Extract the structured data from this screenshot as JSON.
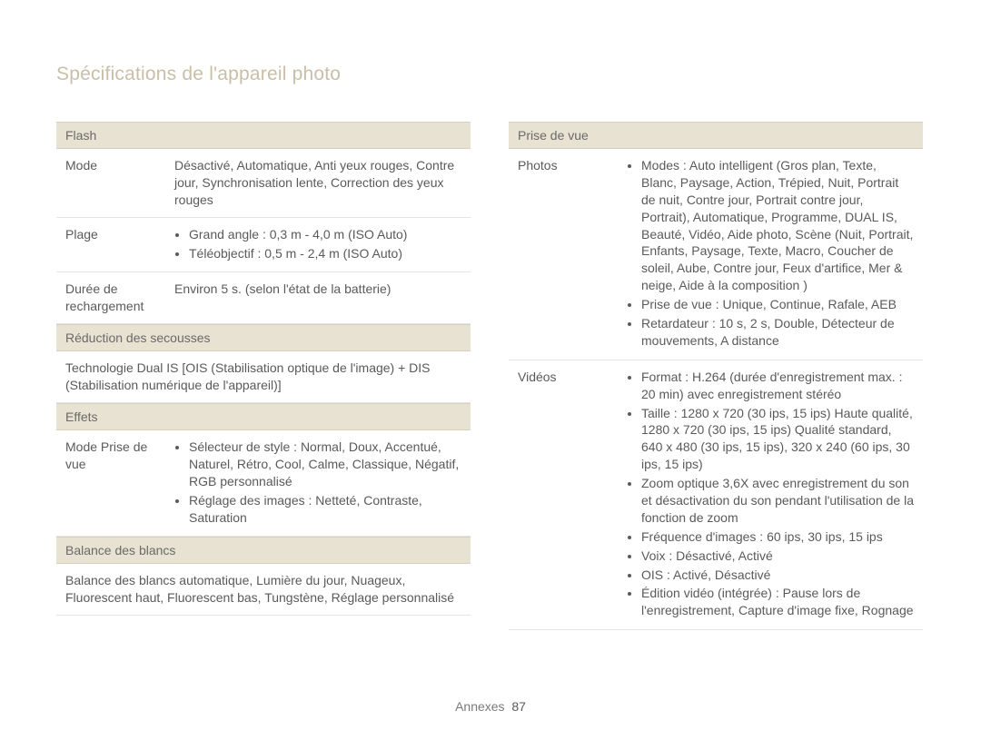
{
  "page_title": "Spécifications de l'appareil photo",
  "footer": {
    "label": "Annexes",
    "page_number": "87"
  },
  "colors": {
    "section_header_bg": "#e7e2d1",
    "title_color": "#c9bfa8",
    "border_color": "#e4e4e4",
    "text_color": "#5a5a5a"
  },
  "left": {
    "flash": {
      "header": "Flash",
      "mode": {
        "label": "Mode",
        "value": "Désactivé, Automatique, Anti yeux rouges, Contre jour, Synchronisation lente, Correction des yeux rouges"
      },
      "plage": {
        "label": "Plage",
        "bullets": [
          "Grand angle : 0,3 m - 4,0 m (ISO Auto)",
          "Téléobjectif : 0,5 m - 2,4 m (ISO Auto)"
        ]
      },
      "recharge": {
        "label": "Durée de rechargement",
        "value": "Environ 5 s. (selon l'état de la batterie)"
      }
    },
    "reduction": {
      "header": "Réduction des secousses",
      "text": "Technologie Dual IS [OIS (Stabilisation optique de l'image) + DIS (Stabilisation numérique de l'appareil)]"
    },
    "effets": {
      "header": "Effets",
      "mode_prise": {
        "label": "Mode Prise de vue",
        "bullets": [
          "Sélecteur de style : Normal, Doux, Accentué, Naturel, Rétro, Cool, Calme, Classique, Négatif, RGB personnalisé",
          "Réglage des images : Netteté, Contraste, Saturation"
        ]
      }
    },
    "balance": {
      "header": "Balance des blancs",
      "text": "Balance des blancs automatique, Lumière du jour, Nuageux, Fluorescent haut, Fluorescent bas, Tungstène, Réglage personnalisé"
    }
  },
  "right": {
    "prise": {
      "header": "Prise de vue",
      "photos": {
        "label": "Photos",
        "bullets": [
          "Modes : Auto intelligent (Gros plan, Texte, Blanc, Paysage, Action, Trépied, Nuit, Portrait de nuit, Contre jour, Portrait contre jour, Portrait), Automatique, Programme, DUAL IS, Beauté, Vidéo, Aide photo, Scène (Nuit, Portrait, Enfants, Paysage, Texte, Macro, Coucher de soleil, Aube, Contre jour, Feux d'artifice, Mer & neige, Aide à la composition )",
          "Prise de vue : Unique, Continue, Rafale, AEB",
          "Retardateur : 10 s, 2 s, Double, Détecteur de mouvements, A distance"
        ]
      },
      "videos": {
        "label": "Vidéos",
        "bullets": [
          "Format : H.264 (durée d'enregistrement max. : 20 min) avec enregistrement stéréo",
          "Taille : 1280 x 720 (30 ips, 15 ips) Haute qualité, 1280 x 720 (30 ips, 15 ips) Qualité standard, 640 x 480 (30 ips, 15 ips), 320 x 240 (60 ips, 30 ips, 15 ips)",
          "Zoom optique 3,6X avec enregistrement du son et désactivation du son pendant l'utilisation de la fonction de zoom",
          "Fréquence d'images : 60 ips, 30 ips, 15 ips",
          "Voix : Désactivé, Activé",
          "OIS : Activé, Désactivé",
          "Édition vidéo (intégrée) : Pause lors de l'enregistrement, Capture d'image fixe, Rognage"
        ]
      }
    }
  }
}
